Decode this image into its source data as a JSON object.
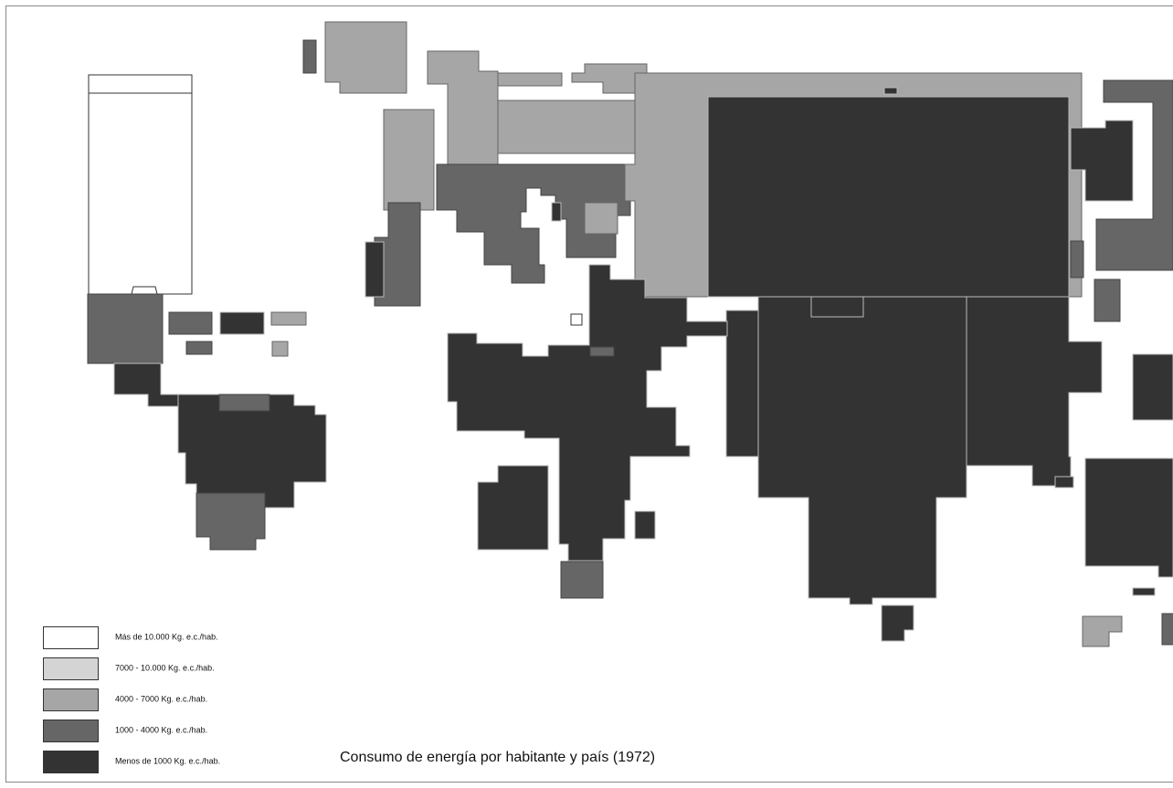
{
  "title": "Consumo de energía por habitante y país (1972)",
  "legend": [
    {
      "label": "Más de 10.000 Kg. e.c./hab.",
      "color": "#ffffff"
    },
    {
      "label": "7000 - 10.000 Kg. e.c./hab.",
      "color": "#d4d4d4"
    },
    {
      "label": "4000 - 7000 Kg. e.c./hab.",
      "color": "#a6a6a6"
    },
    {
      "label": "1000 - 4000 Kg. e.c./hab.",
      "color": "#666666"
    },
    {
      "label": "Menos de 1000 Kg. e.c./hab.",
      "color": "#333333"
    }
  ]
}
